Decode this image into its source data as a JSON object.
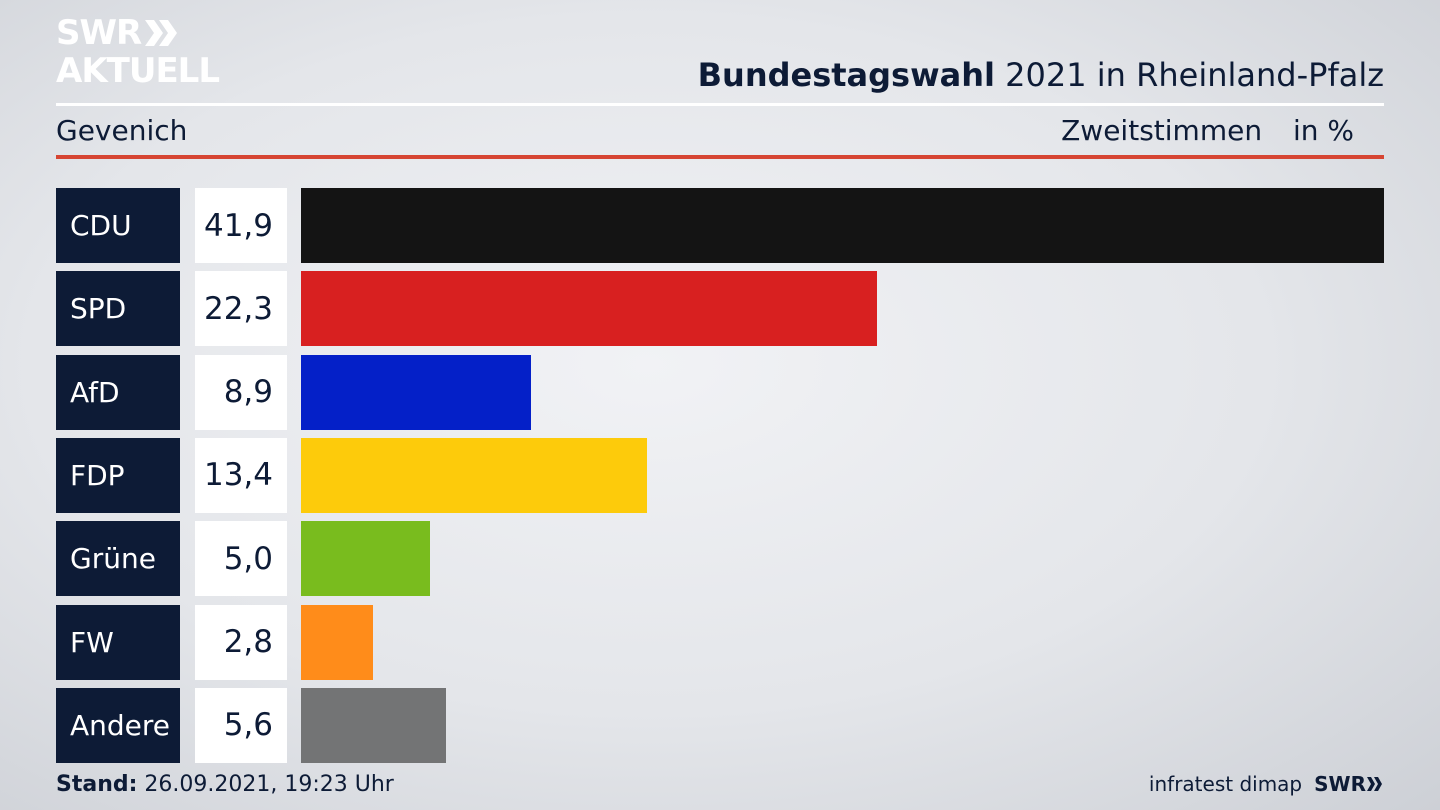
{
  "logo": {
    "line1": "SWR",
    "line2": "AKTUELL"
  },
  "header": {
    "title_bold": "Bundestagswahl",
    "title_rest": "2021 in Rheinland-Pfalz",
    "region": "Gevenich",
    "metric": "Zweitstimmen",
    "unit": "in %"
  },
  "colors": {
    "navy": "#0d1b36",
    "accent_red": "#d64533"
  },
  "chart_data": {
    "type": "bar",
    "orientation": "horizontal",
    "categories": [
      "CDU",
      "SPD",
      "AfD",
      "FDP",
      "Grüne",
      "FW",
      "Andere"
    ],
    "values": [
      41.9,
      22.3,
      8.9,
      13.4,
      5.0,
      2.8,
      5.6
    ],
    "value_labels": [
      "41,9",
      "22,3",
      "8,9",
      "13,4",
      "5,0",
      "2,8",
      "5,6"
    ],
    "colors": [
      "#141414",
      "#d82020",
      "#0420c8",
      "#fdcb0b",
      "#79bc1e",
      "#ff8c1a",
      "#737475"
    ],
    "xlim": [
      0,
      41.9
    ]
  },
  "footer": {
    "stand_label": "Stand:",
    "stand_value": "26.09.2021, 19:23 Uhr",
    "source": "infratest dimap",
    "brand": "SWR"
  }
}
